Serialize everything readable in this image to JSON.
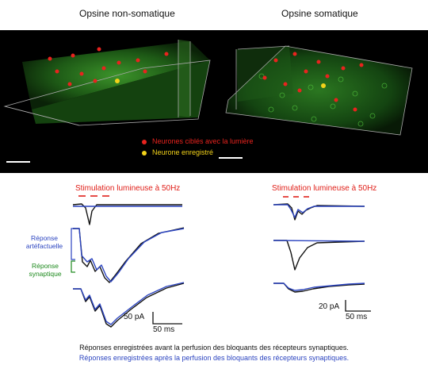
{
  "panels": {
    "left_title": "Opsine non-somatique",
    "right_title": "Opsine somatique"
  },
  "legend": {
    "targeted_label": "Neurones ciblés avec la lumière",
    "recorded_label": "Neurone enregistré",
    "targeted_color": "#e8231e",
    "recorded_color": "#f2d21a"
  },
  "traces": {
    "left_stim_label": "Stimulation lumineuse à 50Hz",
    "right_stim_label": "Stimulation lumineuse à 50Hz",
    "artifact_label": "Réponse artéfactuelle",
    "synaptic_label": "Réponse synaptique",
    "left_scale_amp": "50 pA",
    "left_scale_time": "50 ms",
    "right_scale_amp": "20 pA",
    "right_scale_time": "50 ms",
    "before_color": "#111111",
    "after_color": "#2b44c0",
    "synaptic_color": "#1e8a1e"
  },
  "caption": {
    "line1": "Réponses enregistrées avant la perfusion des bloquants des récepteurs synaptiques.",
    "line2": "Réponses enregistrées après la perfusion des bloquants des récepteurs synaptiques."
  }
}
